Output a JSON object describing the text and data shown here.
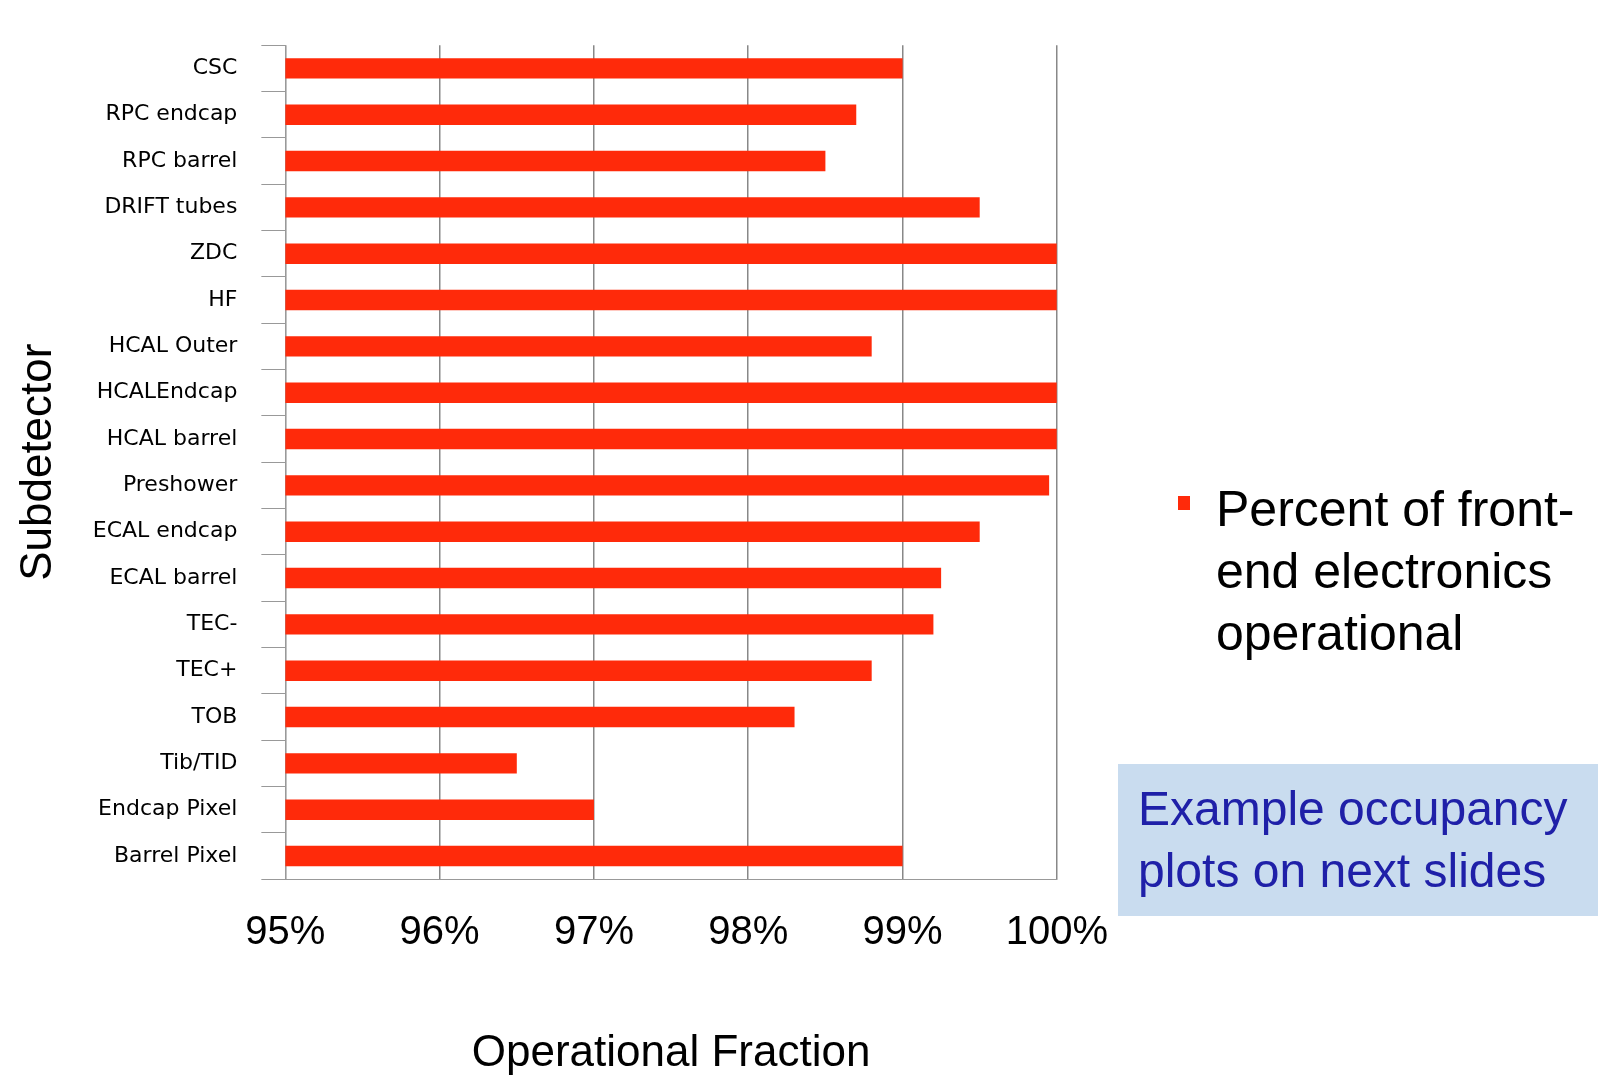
{
  "chart_data": {
    "type": "bar",
    "orientation": "horizontal",
    "xlabel": "Operational Fraction",
    "ylabel": "Subdetector",
    "categories": [
      "CSC",
      "RPC endcap",
      "RPC barrel",
      "DRIFT tubes",
      "ZDC",
      "HF",
      "HCAL Outer",
      "HCALEndcap",
      "HCAL barrel",
      "Preshower",
      "ECAL endcap",
      "ECAL barrel",
      "TEC-",
      "TEC+",
      "TOB",
      "Tib/TID",
      "Endcap Pixel",
      "Barrel Pixel"
    ],
    "series": [
      {
        "name": "Percent of front-end electronics operational",
        "color": "#ff2a0a",
        "values": [
          99.0,
          98.7,
          98.5,
          99.5,
          100,
          100,
          98.8,
          100,
          100,
          99.95,
          99.5,
          99.25,
          99.2,
          98.8,
          98.3,
          96.5,
          97.0,
          99.0
        ]
      }
    ],
    "xlim": [
      95,
      100
    ],
    "xticks": [
      {
        "value": 95,
        "label": "95%"
      },
      {
        "value": 96,
        "label": "96%"
      },
      {
        "value": 97,
        "label": "97%"
      },
      {
        "value": 98,
        "label": "98%"
      },
      {
        "value": 99,
        "label": "99%"
      },
      {
        "value": 100,
        "label": "100%"
      }
    ],
    "grid": "x",
    "legend": "right",
    "annotations": [
      "Example occupancy plots on next slides"
    ]
  }
}
